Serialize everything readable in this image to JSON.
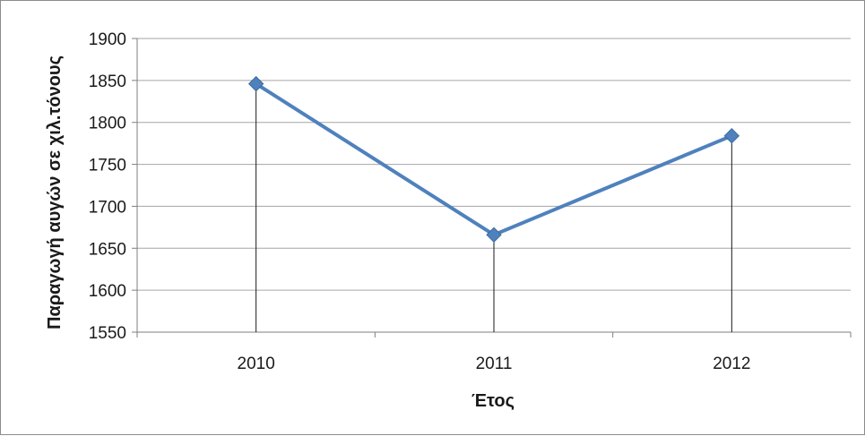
{
  "chart_data": {
    "type": "line",
    "x": [
      "2010",
      "2011",
      "2012"
    ],
    "series": [
      {
        "values": [
          1846,
          1666,
          1784
        ]
      }
    ],
    "xlabel": "Έτος",
    "ylabel": "Παραγωγή αυγών σε χιλ.τόνους",
    "ylim": [
      1550,
      1900
    ],
    "yticks": [
      "1550",
      "1600",
      "1650",
      "1700",
      "1750",
      "1800",
      "1850",
      "1900"
    ],
    "grid": true,
    "drop_lines": true,
    "marker": "diamond",
    "color": "#4f81bd"
  }
}
